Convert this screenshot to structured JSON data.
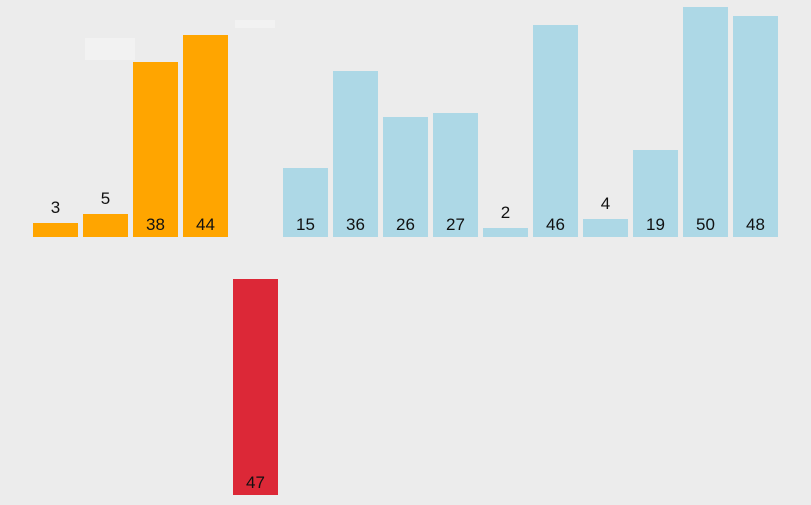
{
  "sort_visualizer": {
    "colors": {
      "background": "#ececec",
      "sorted": "#ffa500",
      "unsorted": "#add8e6",
      "current": "#dc2837"
    },
    "bars": [
      {
        "value": 3,
        "state": "sorted"
      },
      {
        "value": 5,
        "state": "sorted"
      },
      {
        "value": 38,
        "state": "sorted"
      },
      {
        "value": 44,
        "state": "sorted"
      },
      {
        "value": 47,
        "state": "current"
      },
      {
        "value": 15,
        "state": "unsorted"
      },
      {
        "value": 36,
        "state": "unsorted"
      },
      {
        "value": 26,
        "state": "unsorted"
      },
      {
        "value": 27,
        "state": "unsorted"
      },
      {
        "value": 2,
        "state": "unsorted"
      },
      {
        "value": 46,
        "state": "unsorted"
      },
      {
        "value": 4,
        "state": "unsorted"
      },
      {
        "value": 19,
        "state": "unsorted"
      },
      {
        "value": 50,
        "state": "unsorted"
      },
      {
        "value": 48,
        "state": "unsorted"
      }
    ]
  }
}
